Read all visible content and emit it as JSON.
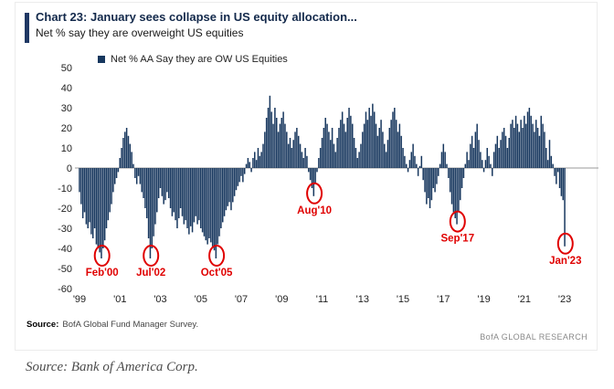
{
  "header": {
    "title": "Chart 23: January sees collapse in US equity allocation...",
    "subtitle": "Net % say they are overweight US equities"
  },
  "legend": {
    "label": "Net % AA Say they are OW US Equities"
  },
  "footer": {
    "source_label": "Source:",
    "source_text": "BofA Global Fund Manager Survey.",
    "brand": "BofA GLOBAL RESEARCH"
  },
  "caption": "Source: Bank of America Corp.",
  "colors": {
    "bar": "#17375e",
    "accent": "#1f3864",
    "annotation": "#e00000",
    "zero_line": "#999999"
  },
  "chart_data": {
    "type": "bar",
    "title": "Net % AA Say they are OW US Equities",
    "x_start": "1999-01",
    "frequency": "monthly",
    "ylim": [
      -60,
      50
    ],
    "yticks": [
      50,
      40,
      30,
      20,
      10,
      0,
      -10,
      -20,
      -30,
      -40,
      -50,
      -60
    ],
    "xtick_labels": [
      "'99",
      "'01",
      "'03",
      "'05",
      "'07",
      "'09",
      "'11",
      "'13",
      "'15",
      "'17",
      "'19",
      "'21",
      "'23"
    ],
    "grid": false,
    "legend_position": "top-left",
    "values": [
      -12,
      -18,
      -25,
      -22,
      -28,
      -30,
      -27,
      -33,
      -35,
      -30,
      -38,
      -40,
      -42,
      -45,
      -40,
      -36,
      -30,
      -26,
      -22,
      -18,
      -12,
      -8,
      -5,
      -2,
      5,
      10,
      15,
      18,
      20,
      16,
      12,
      8,
      2,
      -5,
      -8,
      -4,
      -8,
      -12,
      -15,
      -20,
      -25,
      -35,
      -45,
      -40,
      -34,
      -28,
      -22,
      -15,
      -10,
      -14,
      -18,
      -16,
      -12,
      -15,
      -20,
      -24,
      -22,
      -26,
      -30,
      -25,
      -20,
      -24,
      -28,
      -26,
      -30,
      -33,
      -29,
      -32,
      -27,
      -24,
      -28,
      -26,
      -30,
      -32,
      -34,
      -36,
      -38,
      -35,
      -37,
      -39,
      -41,
      -45,
      -38,
      -34,
      -30,
      -27,
      -24,
      -21,
      -19,
      -17,
      -21,
      -17,
      -14,
      -11,
      -9,
      -7,
      -4,
      -7,
      -3,
      2,
      5,
      3,
      -2,
      5,
      8,
      4,
      10,
      6,
      8,
      12,
      18,
      25,
      30,
      36,
      28,
      22,
      30,
      25,
      18,
      22,
      25,
      28,
      22,
      18,
      12,
      15,
      10,
      14,
      18,
      20,
      16,
      12,
      8,
      5,
      10,
      6,
      -2,
      -6,
      -10,
      -14,
      -8,
      -2,
      5,
      10,
      15,
      20,
      25,
      22,
      18,
      14,
      20,
      12,
      8,
      15,
      20,
      24,
      28,
      22,
      18,
      25,
      30,
      26,
      22,
      15,
      10,
      5,
      8,
      12,
      18,
      22,
      28,
      24,
      30,
      26,
      32,
      28,
      22,
      16,
      20,
      24,
      18,
      12,
      8,
      14,
      20,
      24,
      28,
      30,
      24,
      18,
      22,
      16,
      10,
      6,
      2,
      -2,
      4,
      8,
      12,
      6,
      2,
      -4,
      1,
      6,
      -6,
      -12,
      -18,
      -15,
      -20,
      -16,
      -10,
      -12,
      -8,
      -4,
      2,
      8,
      12,
      8,
      2,
      -5,
      -12,
      -18,
      -22,
      -25,
      -28,
      -22,
      -16,
      -10,
      -5,
      2,
      8,
      4,
      12,
      16,
      10,
      18,
      22,
      14,
      8,
      4,
      -2,
      4,
      10,
      6,
      2,
      -4,
      8,
      12,
      16,
      10,
      14,
      18,
      20,
      16,
      10,
      15,
      22,
      24,
      20,
      26,
      22,
      18,
      24,
      20,
      26,
      22,
      28,
      30,
      26,
      22,
      18,
      24,
      20,
      16,
      26,
      22,
      18,
      10,
      4,
      14,
      6,
      2,
      -4,
      -8,
      -2,
      -10,
      -14,
      -16,
      -39
    ],
    "annotations": [
      {
        "label": "Feb'00",
        "month_index": 13,
        "value": -45
      },
      {
        "label": "Jul'02",
        "month_index": 42,
        "value": -45
      },
      {
        "label": "Oct'05",
        "month_index": 81,
        "value": -45
      },
      {
        "label": "Aug'10",
        "month_index": 139,
        "value": -14
      },
      {
        "label": "Sep'17",
        "month_index": 224,
        "value": -28
      },
      {
        "label": "Jan'23",
        "month_index": 288,
        "value": -39
      }
    ]
  }
}
